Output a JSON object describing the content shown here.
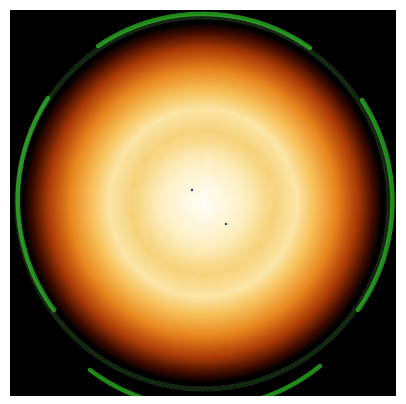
{
  "image": {
    "subject": "radial-heat-glow",
    "palette": {
      "background": "#000000",
      "frame": "#ffffff",
      "core": "#fffbe6",
      "inner_ring": "#f4cf72",
      "mid": "#f0a638",
      "outer": "#b14009",
      "rim": "#3a0900",
      "ring": "#1f8a19"
    },
    "pattern": "hexagonal-mottled-core",
    "outer_ring": "green-dashed-arcs"
  }
}
